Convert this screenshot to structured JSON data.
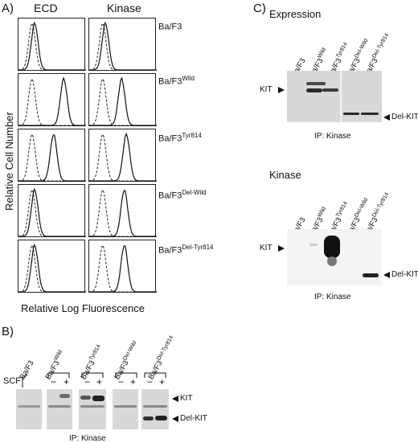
{
  "panelA": {
    "letter": "A)",
    "col_headers": [
      "ECD",
      "Kinase"
    ],
    "ylabel": "Relative Cell Number",
    "xlabel": "Relative Log Fluorescence",
    "rows": [
      {
        "name": "Ba/F3",
        "sup": ""
      },
      {
        "name": "Ba/F3",
        "sup": "Wild"
      },
      {
        "name": "Ba/F3",
        "sup": "Tyr814"
      },
      {
        "name": "Ba/F3",
        "sup": "Del-Wild"
      },
      {
        "name": "Ba/F3",
        "sup": "Del-Tyr814"
      }
    ]
  },
  "panelB": {
    "letter": "B)",
    "scf_label": "SCF",
    "minus": "−",
    "plus": "+",
    "groups": [
      {
        "name": "Ba/F3",
        "sup": ""
      },
      {
        "name": "Ba/F3",
        "sup": "Wild"
      },
      {
        "name": "Ba/F3",
        "sup": "Tyr814"
      },
      {
        "name": "Ba/F3",
        "sup": "Del-Wild"
      },
      {
        "name": "Ba/F3",
        "sup": "Del-Tyr814"
      }
    ],
    "kit_label": "KIT",
    "delkit_label": "Del-KIT",
    "ip": "IP: Kinase"
  },
  "panelC": {
    "letter": "C)",
    "expression_title": "Expression",
    "kinase_title": "Kinase",
    "lanes": [
      {
        "name": "Ba/F3",
        "sup": ""
      },
      {
        "name": "Ba/F3",
        "sup": "Wild"
      },
      {
        "name": "Ba/F3",
        "sup": "Tyr814"
      },
      {
        "name": "Ba/F3",
        "sup": "Del-Wild"
      },
      {
        "name": "Ba/F3",
        "sup": "Del-Tyr814"
      }
    ],
    "kit_label": "KIT",
    "delkit_label": "Del-KIT",
    "ip_expression": "IP: Kinase",
    "ip_kinase": "IP: Kinase"
  }
}
